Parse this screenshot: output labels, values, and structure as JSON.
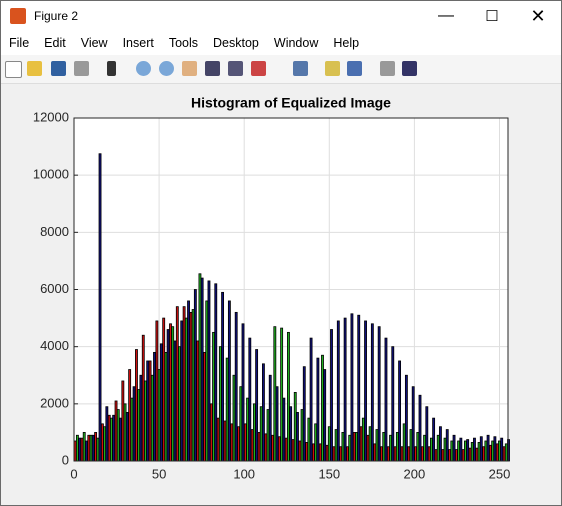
{
  "window": {
    "title": "Figure 2",
    "menu": [
      "File",
      "Edit",
      "View",
      "Insert",
      "Tools",
      "Desktop",
      "Window",
      "Help"
    ]
  },
  "chart_data": {
    "type": "histogram",
    "title": "Histogram of Equalized Image",
    "x": [
      2,
      6,
      10,
      14,
      18,
      22,
      26,
      30,
      34,
      38,
      42,
      46,
      50,
      54,
      58,
      62,
      66,
      70,
      74,
      78,
      82,
      86,
      90,
      94,
      98,
      102,
      106,
      110,
      114,
      118,
      122,
      126,
      130,
      134,
      138,
      142,
      146,
      150,
      154,
      158,
      162,
      166,
      170,
      174,
      178,
      182,
      186,
      190,
      194,
      198,
      202,
      206,
      210,
      214,
      218,
      222,
      226,
      230,
      234,
      238,
      242,
      246,
      250,
      254
    ],
    "series": [
      {
        "name": "Red",
        "color": "#d01010",
        "values": [
          700,
          800,
          900,
          1000,
          1300,
          1600,
          2100,
          2800,
          3200,
          3900,
          4400,
          3500,
          4900,
          5000,
          4800,
          5400,
          5400,
          5200,
          4200,
          3800,
          2000,
          1500,
          1400,
          1300,
          1200,
          1300,
          1100,
          1000,
          950,
          900,
          850,
          800,
          750,
          700,
          650,
          600,
          600,
          550,
          500,
          500,
          500,
          1000,
          1200,
          900,
          600,
          500,
          500,
          500,
          500,
          500,
          500,
          500,
          500,
          400,
          400,
          400,
          400,
          400,
          450,
          450,
          500,
          550,
          600,
          500
        ]
      },
      {
        "name": "Green",
        "color": "#20b020",
        "values": [
          900,
          1000,
          900,
          800,
          1200,
          1500,
          1800,
          2000,
          2200,
          2500,
          2800,
          3000,
          3200,
          3800,
          4700,
          4000,
          5000,
          5300,
          6550,
          5600,
          4500,
          4000,
          3600,
          3000,
          2600,
          2200,
          2000,
          1900,
          1800,
          4700,
          4650,
          4500,
          2400,
          1800,
          1500,
          1300,
          3700,
          1200,
          1100,
          1000,
          900,
          1000,
          1500,
          1200,
          1100,
          1000,
          900,
          1000,
          1300,
          1100,
          1000,
          900,
          800,
          900,
          800,
          700,
          700,
          700,
          650,
          650,
          700,
          700,
          700,
          600
        ]
      },
      {
        "name": "Blue",
        "color": "#10107a",
        "values": [
          800,
          700,
          900,
          10750,
          1900,
          1600,
          1500,
          1700,
          2600,
          3000,
          3500,
          3800,
          4100,
          4600,
          4200,
          4900,
          5600,
          6000,
          6400,
          6300,
          6200,
          5900,
          5600,
          5200,
          4800,
          4300,
          3900,
          3400,
          3000,
          2600,
          2200,
          1900,
          1700,
          3300,
          4300,
          3600,
          3200,
          4600,
          4900,
          5000,
          5150,
          5100,
          4900,
          4800,
          4700,
          4300,
          4000,
          3500,
          3000,
          2600,
          2300,
          1900,
          1500,
          1200,
          1100,
          900,
          800,
          750,
          800,
          850,
          900,
          850,
          800,
          750
        ]
      }
    ],
    "xlim": [
      0,
      255
    ],
    "xticks": [
      0,
      50,
      100,
      150,
      200,
      250
    ],
    "ylim": [
      0,
      12000
    ],
    "yticks": [
      0,
      2000,
      4000,
      6000,
      8000,
      10000,
      12000
    ],
    "grid": true
  }
}
